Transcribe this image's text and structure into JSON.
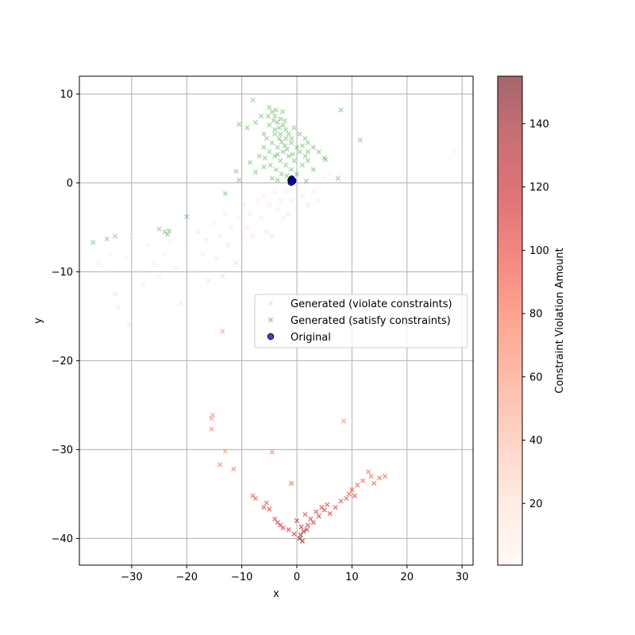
{
  "chart_data": {
    "type": "scatter",
    "xlabel": "x",
    "ylabel": "y",
    "xlim": [
      -39.5,
      32
    ],
    "ylim": [
      -43,
      12
    ],
    "x_ticks": [
      -30,
      -20,
      -10,
      0,
      10,
      20,
      30
    ],
    "y_ticks": [
      -40,
      -30,
      -20,
      -10,
      0,
      10
    ],
    "x_tick_labels": [
      "−30",
      "−20",
      "−10",
      "0",
      "10",
      "20",
      "30"
    ],
    "y_tick_labels": [
      "−40",
      "−30",
      "−20",
      "−10",
      "0",
      "10"
    ],
    "grid": true,
    "legend_position": "center-right",
    "legend": [
      {
        "label": "Generated (violate constraints)",
        "marker": "x",
        "color": "#fde0d2"
      },
      {
        "label": "Generated (satisfy constraints)",
        "marker": "x",
        "color": "#2ca02c"
      },
      {
        "label": "Original",
        "marker": "circle",
        "color": "#0000cd"
      }
    ],
    "colorbar": {
      "label": "Constraint Violation Amount",
      "range": [
        0.5,
        155
      ],
      "ticks": [
        20,
        40,
        60,
        80,
        100,
        120,
        140
      ],
      "tick_labels": [
        "20",
        "40",
        "60",
        "80",
        "100",
        "120",
        "140"
      ],
      "colormap": "Reds",
      "alpha": 0.6
    },
    "series": [
      {
        "name": "Generated (violate constraints)",
        "points": [
          {
            "x": -36,
            "y": -9,
            "v": 12
          },
          {
            "x": -35,
            "y": -10,
            "v": 10
          },
          {
            "x": -34,
            "y": -8,
            "v": 12
          },
          {
            "x": -33,
            "y": -12.5,
            "v": 25
          },
          {
            "x": -32.5,
            "y": -14,
            "v": 15
          },
          {
            "x": -31,
            "y": -8.5,
            "v": 12
          },
          {
            "x": -30.5,
            "y": -16,
            "v": 18
          },
          {
            "x": -30,
            "y": -6,
            "v": 12
          },
          {
            "x": -29,
            "y": -10,
            "v": 14
          },
          {
            "x": -28,
            "y": -11.5,
            "v": 15
          },
          {
            "x": -27,
            "y": -7,
            "v": 12
          },
          {
            "x": -26,
            "y": -9,
            "v": 14
          },
          {
            "x": -25,
            "y": -10.5,
            "v": 13
          },
          {
            "x": -24,
            "y": -8,
            "v": 14
          },
          {
            "x": -23,
            "y": -6.5,
            "v": 15
          },
          {
            "x": -22,
            "y": -9.5,
            "v": 15
          },
          {
            "x": -21,
            "y": -13.5,
            "v": 20
          },
          {
            "x": -20,
            "y": -7,
            "v": 15
          },
          {
            "x": -19,
            "y": -10,
            "v": 16
          },
          {
            "x": -18,
            "y": -5.5,
            "v": 15
          },
          {
            "x": -17,
            "y": -8,
            "v": 18
          },
          {
            "x": -16.5,
            "y": -6.5,
            "v": 18
          },
          {
            "x": -16,
            "y": -11,
            "v": 22
          },
          {
            "x": -15,
            "y": -4.5,
            "v": 15
          },
          {
            "x": -14.5,
            "y": -8.5,
            "v": 20
          },
          {
            "x": -14,
            "y": -6,
            "v": 18
          },
          {
            "x": -13.5,
            "y": -10.5,
            "v": 28
          },
          {
            "x": -13,
            "y": -3.5,
            "v": 15
          },
          {
            "x": -12.5,
            "y": -7,
            "v": 20
          },
          {
            "x": -12,
            "y": -5,
            "v": 17
          },
          {
            "x": -11,
            "y": -9,
            "v": 24
          },
          {
            "x": -10.5,
            "y": -4,
            "v": 16
          },
          {
            "x": -10,
            "y": -6.5,
            "v": 20
          },
          {
            "x": -9.5,
            "y": -2.5,
            "v": 15
          },
          {
            "x": -9,
            "y": -5,
            "v": 20
          },
          {
            "x": -8.5,
            "y": -3.5,
            "v": 17
          },
          {
            "x": -8,
            "y": -6,
            "v": 21
          },
          {
            "x": -7,
            "y": -2,
            "v": 14
          },
          {
            "x": -6.5,
            "y": -4,
            "v": 18
          },
          {
            "x": -6,
            "y": -1.5,
            "v": 13
          },
          {
            "x": -5.5,
            "y": -5.5,
            "v": 22
          },
          {
            "x": -5,
            "y": -2.5,
            "v": 16
          },
          {
            "x": -4.5,
            "y": -6,
            "v": 23
          },
          {
            "x": -4,
            "y": -1,
            "v": 12
          },
          {
            "x": -3.5,
            "y": -3,
            "v": 17
          },
          {
            "x": -3,
            "y": -2,
            "v": 15
          },
          {
            "x": -2.5,
            "y": -4,
            "v": 18
          },
          {
            "x": -2,
            "y": -1,
            "v": 12
          },
          {
            "x": -1.5,
            "y": -3.5,
            "v": 17
          },
          {
            "x": -1,
            "y": -2,
            "v": 14
          },
          {
            "x": 0,
            "y": -3,
            "v": 16
          },
          {
            "x": 1,
            "y": -1.5,
            "v": 13
          },
          {
            "x": 2,
            "y": -2.5,
            "v": 15
          },
          {
            "x": 3,
            "y": -1,
            "v": 12
          },
          {
            "x": 4,
            "y": -2,
            "v": 13
          },
          {
            "x": 5,
            "y": 0.5,
            "v": 8
          },
          {
            "x": 6,
            "y": 1,
            "v": 8
          },
          {
            "x": 7,
            "y": 0.5,
            "v": 7
          },
          {
            "x": 8,
            "y": 1,
            "v": 6
          },
          {
            "x": 28.8,
            "y": 3.5,
            "v": 10
          },
          {
            "x": -13.5,
            "y": -16.7,
            "v": 60
          },
          {
            "x": -15.5,
            "y": -26.5,
            "v": 70
          },
          {
            "x": -15.3,
            "y": -26.1,
            "v": 65
          },
          {
            "x": -15.5,
            "y": -27.7,
            "v": 72
          },
          {
            "x": -13,
            "y": -30.2,
            "v": 68
          },
          {
            "x": -14,
            "y": -31.7,
            "v": 75
          },
          {
            "x": -11.5,
            "y": -32.2,
            "v": 80
          },
          {
            "x": -4.5,
            "y": -30.3,
            "v": 80
          },
          {
            "x": 8.5,
            "y": -26.8,
            "v": 70
          },
          {
            "x": -8,
            "y": -35.2,
            "v": 95
          },
          {
            "x": -6,
            "y": -36.5,
            "v": 105
          },
          {
            "x": -5.5,
            "y": -36,
            "v": 100
          },
          {
            "x": -5,
            "y": -36.7,
            "v": 110
          },
          {
            "x": -4,
            "y": -37.8,
            "v": 110
          },
          {
            "x": -3.5,
            "y": -38.2,
            "v": 115
          },
          {
            "x": -3,
            "y": -38.5,
            "v": 118
          },
          {
            "x": -2.5,
            "y": -38.8,
            "v": 118
          },
          {
            "x": -1.5,
            "y": -39,
            "v": 120
          },
          {
            "x": -1,
            "y": -33.8,
            "v": 95
          },
          {
            "x": -0.5,
            "y": -39.5,
            "v": 130
          },
          {
            "x": 0.5,
            "y": -40,
            "v": 140
          },
          {
            "x": 0.7,
            "y": -39.6,
            "v": 145
          },
          {
            "x": 1,
            "y": -40.3,
            "v": 150
          },
          {
            "x": 1.2,
            "y": -39.2,
            "v": 138
          },
          {
            "x": 0.8,
            "y": -38.7,
            "v": 130
          },
          {
            "x": 1.5,
            "y": -37.3,
            "v": 105
          },
          {
            "x": 2,
            "y": -38.5,
            "v": 115
          },
          {
            "x": 2.5,
            "y": -37.8,
            "v": 112
          },
          {
            "x": 3,
            "y": -38.2,
            "v": 118
          },
          {
            "x": 3.5,
            "y": -37,
            "v": 110
          },
          {
            "x": 4,
            "y": -37.5,
            "v": 115
          },
          {
            "x": 5,
            "y": -36.8,
            "v": 112
          },
          {
            "x": 5.5,
            "y": -36.2,
            "v": 108
          },
          {
            "x": 6,
            "y": -37.2,
            "v": 115
          },
          {
            "x": 7,
            "y": -36.5,
            "v": 110
          },
          {
            "x": 8,
            "y": -35.8,
            "v": 105
          },
          {
            "x": 9,
            "y": -35.5,
            "v": 102
          },
          {
            "x": 9.5,
            "y": -35,
            "v": 100
          },
          {
            "x": 10,
            "y": -34.5,
            "v": 98
          },
          {
            "x": 10.5,
            "y": -35.2,
            "v": 105
          },
          {
            "x": 11,
            "y": -34,
            "v": 95
          },
          {
            "x": 12,
            "y": -33.5,
            "v": 90
          },
          {
            "x": 13,
            "y": -32.5,
            "v": 85
          },
          {
            "x": 13.5,
            "y": -33,
            "v": 88
          },
          {
            "x": 14,
            "y": -33.8,
            "v": 92
          },
          {
            "x": 15,
            "y": -33.2,
            "v": 90
          },
          {
            "x": 16,
            "y": -33,
            "v": 88
          },
          {
            "x": -7.5,
            "y": -35.5,
            "v": 95
          },
          {
            "x": 0,
            "y": -38,
            "v": 125
          },
          {
            "x": 1.8,
            "y": -39,
            "v": 135
          },
          {
            "x": 4.5,
            "y": -36.5,
            "v": 110
          }
        ]
      },
      {
        "name": "Generated (satisfy constraints)",
        "points": [
          {
            "x": -37,
            "y": -6.7
          },
          {
            "x": -34.5,
            "y": -6.3
          },
          {
            "x": -33,
            "y": -6
          },
          {
            "x": -25,
            "y": -5.2
          },
          {
            "x": -24,
            "y": -5.5
          },
          {
            "x": -23.5,
            "y": -5.8
          },
          {
            "x": -23.2,
            "y": -5.4
          },
          {
            "x": -20,
            "y": -3.8
          },
          {
            "x": -13,
            "y": -1.2
          },
          {
            "x": -11,
            "y": 1.3
          },
          {
            "x": -10.5,
            "y": 6.6
          },
          {
            "x": -9,
            "y": 6.2
          },
          {
            "x": -8,
            "y": 9.3
          },
          {
            "x": -7.5,
            "y": 6.8
          },
          {
            "x": -6,
            "y": 5.5
          },
          {
            "x": -6,
            "y": 1.8
          },
          {
            "x": -5,
            "y": 8.5
          },
          {
            "x": -4.5,
            "y": 8
          },
          {
            "x": -4,
            "y": 7.5
          },
          {
            "x": -3.5,
            "y": 6.8
          },
          {
            "x": -3,
            "y": 7.2
          },
          {
            "x": -2.5,
            "y": 6.5
          },
          {
            "x": -2,
            "y": 6
          },
          {
            "x": -1.5,
            "y": 5.5
          },
          {
            "x": -1,
            "y": 5
          },
          {
            "x": -5,
            "y": 6.5
          },
          {
            "x": -4,
            "y": 6
          },
          {
            "x": -3,
            "y": 5.5
          },
          {
            "x": -2,
            "y": 5
          },
          {
            "x": -1,
            "y": 4.5
          },
          {
            "x": 0,
            "y": 4
          },
          {
            "x": -5.5,
            "y": 5
          },
          {
            "x": -4.5,
            "y": 4.5
          },
          {
            "x": -3.5,
            "y": 4
          },
          {
            "x": -2.5,
            "y": 3.5
          },
          {
            "x": -1.5,
            "y": 3
          },
          {
            "x": -0.5,
            "y": 2.5
          },
          {
            "x": 0.5,
            "y": 3.5
          },
          {
            "x": -4,
            "y": 3
          },
          {
            "x": -3,
            "y": 2.5
          },
          {
            "x": -2,
            "y": 2
          },
          {
            "x": -1,
            "y": 1.5
          },
          {
            "x": 0,
            "y": 1
          },
          {
            "x": 1,
            "y": 2
          },
          {
            "x": 1.5,
            "y": 3
          },
          {
            "x": -5,
            "y": 3.5
          },
          {
            "x": -6,
            "y": 4
          },
          {
            "x": -4,
            "y": 5.5
          },
          {
            "x": -3.5,
            "y": 3.2
          },
          {
            "x": -2.8,
            "y": 4.6
          },
          {
            "x": -1.8,
            "y": 3.8
          },
          {
            "x": -0.8,
            "y": 3.2
          },
          {
            "x": -3.2,
            "y": 6.2
          },
          {
            "x": -2.2,
            "y": 7
          },
          {
            "x": -4.2,
            "y": 7
          },
          {
            "x": -5.2,
            "y": 7.5
          },
          {
            "x": -3.8,
            "y": 8.2
          },
          {
            "x": -2.6,
            "y": 8
          },
          {
            "x": -6.5,
            "y": 7.5
          },
          {
            "x": -6.8,
            "y": 3
          },
          {
            "x": -4.8,
            "y": 2
          },
          {
            "x": -3.8,
            "y": 1.5
          },
          {
            "x": -2.8,
            "y": 1
          },
          {
            "x": -1.8,
            "y": 0.8
          },
          {
            "x": -4.5,
            "y": 0.5
          },
          {
            "x": -3.5,
            "y": 0.3
          },
          {
            "x": 2,
            "y": 2.5
          },
          {
            "x": 3,
            "y": 1.5
          },
          {
            "x": 2,
            "y": 3.5
          },
          {
            "x": 1,
            "y": 4.2
          },
          {
            "x": 2,
            "y": 4.5
          },
          {
            "x": 3,
            "y": 4
          },
          {
            "x": 4,
            "y": 3.5
          },
          {
            "x": 5,
            "y": 2.8
          },
          {
            "x": 0.5,
            "y": 5.5
          },
          {
            "x": -0.5,
            "y": 6.2
          },
          {
            "x": 1.5,
            "y": 5
          },
          {
            "x": -8.5,
            "y": 2.3
          },
          {
            "x": -7.5,
            "y": 1.2
          },
          {
            "x": -10.5,
            "y": 0.3
          },
          {
            "x": 5.2,
            "y": 2.6
          },
          {
            "x": 8,
            "y": 8.2
          },
          {
            "x": 11.5,
            "y": 4.8
          },
          {
            "x": 7.5,
            "y": 0.5
          },
          {
            "x": 1.7,
            "y": 0.2
          },
          {
            "x": -5.8,
            "y": 2.8
          },
          {
            "x": -2.2,
            "y": 4.2
          },
          {
            "x": -3.2,
            "y": 5
          }
        ]
      },
      {
        "name": "Original",
        "points": [
          {
            "x": -1,
            "y": 0.2
          },
          {
            "x": -0.9,
            "y": 0.35
          },
          {
            "x": -0.8,
            "y": 0.15
          },
          {
            "x": -1.1,
            "y": 0.3
          },
          {
            "x": -0.95,
            "y": 0.45
          },
          {
            "x": -0.7,
            "y": 0.25
          },
          {
            "x": -1.05,
            "y": 0.05
          }
        ]
      }
    ]
  }
}
